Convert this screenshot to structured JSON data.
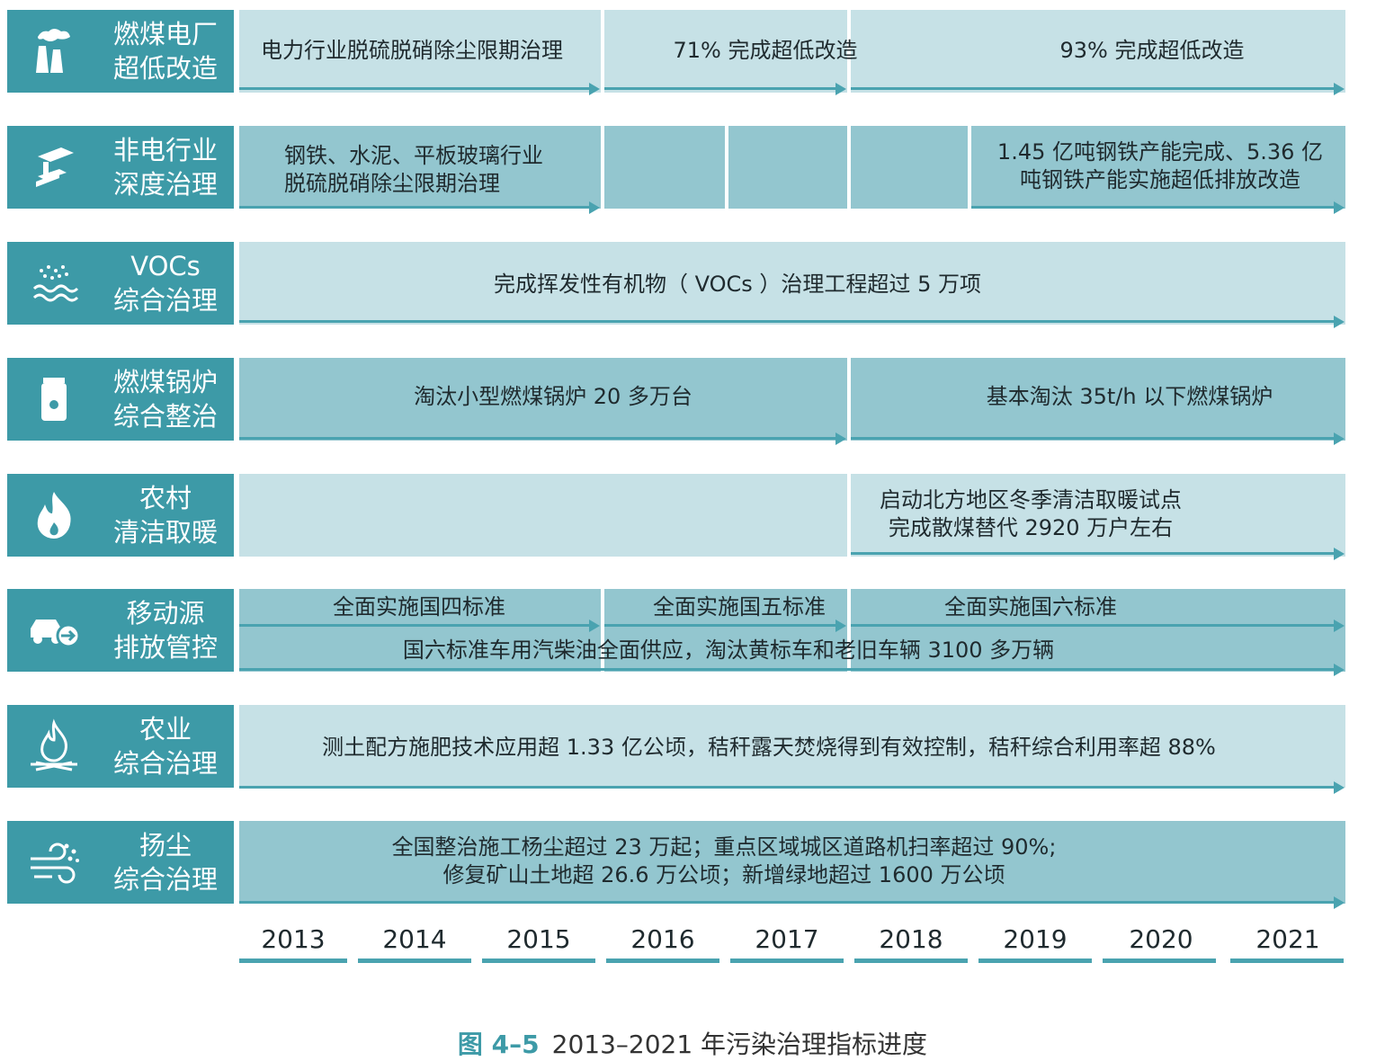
{
  "categories": [
    {
      "line1": "燃煤电厂",
      "line2": "超低改造",
      "icon": "power-plant-icon"
    },
    {
      "line1": "非电行业",
      "line2": "深度治理",
      "icon": "steel-beam-icon"
    },
    {
      "line1": "VOCs",
      "line2": "综合治理",
      "icon": "vapor-icon"
    },
    {
      "line1": "燃煤锅炉",
      "line2": "综合整治",
      "icon": "boiler-icon"
    },
    {
      "line1": "农村",
      "line2": "清洁取暖",
      "icon": "flame-icon"
    },
    {
      "line1": "移动源",
      "line2": "排放管控",
      "icon": "vehicle-emission-icon"
    },
    {
      "line1": "农业",
      "line2": "综合治理",
      "icon": "straw-fire-icon"
    },
    {
      "line1": "扬尘",
      "line2": "综合治理",
      "icon": "dust-wind-icon"
    }
  ],
  "texts": {
    "r0a": "电力行业脱硫脱硝除尘限期治理",
    "r0b": "71% 完成超低改造",
    "r0c": "93% 完成超低改造",
    "r1a1": "钢铁、水泥、平板玻璃行业",
    "r1a2": "脱硫脱硝除尘限期治理",
    "r1b1": "1.45 亿吨钢铁产能完成、5.36 亿",
    "r1b2": "吨钢铁产能实施超低排放改造",
    "r2a": "完成挥发性有机物（ VOCs ）治理工程超过 5 万项",
    "r3a": "淘汰小型燃煤锅炉 20 多万台",
    "r3b": "基本淘汰 35t/h 以下燃煤锅炉",
    "r4a1": "启动北方地区冬季清洁取暖试点",
    "r4a2": "完成散煤替代 2920 万户左右",
    "r5a": "全面实施国四标准",
    "r5b": "全面实施国五标准",
    "r5c": "全面实施国六标准",
    "r5d": "国六标准车用汽柴油全面供应，淘汰黄标车和老旧车辆 3100 多万辆",
    "r6a": "测土配方施肥技术应用超 1.33 亿公顷，秸秆露天焚烧得到有效控制，秸秆综合利用率超 88%",
    "r7a1": "全国整治施工杨尘超过 23 万起；重点区域城区道路机扫率超过 90%;",
    "r7a2": "修复矿山土地超 26.6 万公顷；新增绿地超过 1600 万公顷"
  },
  "years": [
    "2013",
    "2014",
    "2015",
    "2016",
    "2017",
    "2018",
    "2019",
    "2020",
    "2021"
  ],
  "caption": {
    "fig": "图 4–5",
    "title": "2013–2021 年污染治理指标进度"
  },
  "colors": {
    "accent": "#3d9aa7",
    "light": "#c6e1e6",
    "mid": "#93c6cf",
    "bar": "#4aa3b0"
  }
}
